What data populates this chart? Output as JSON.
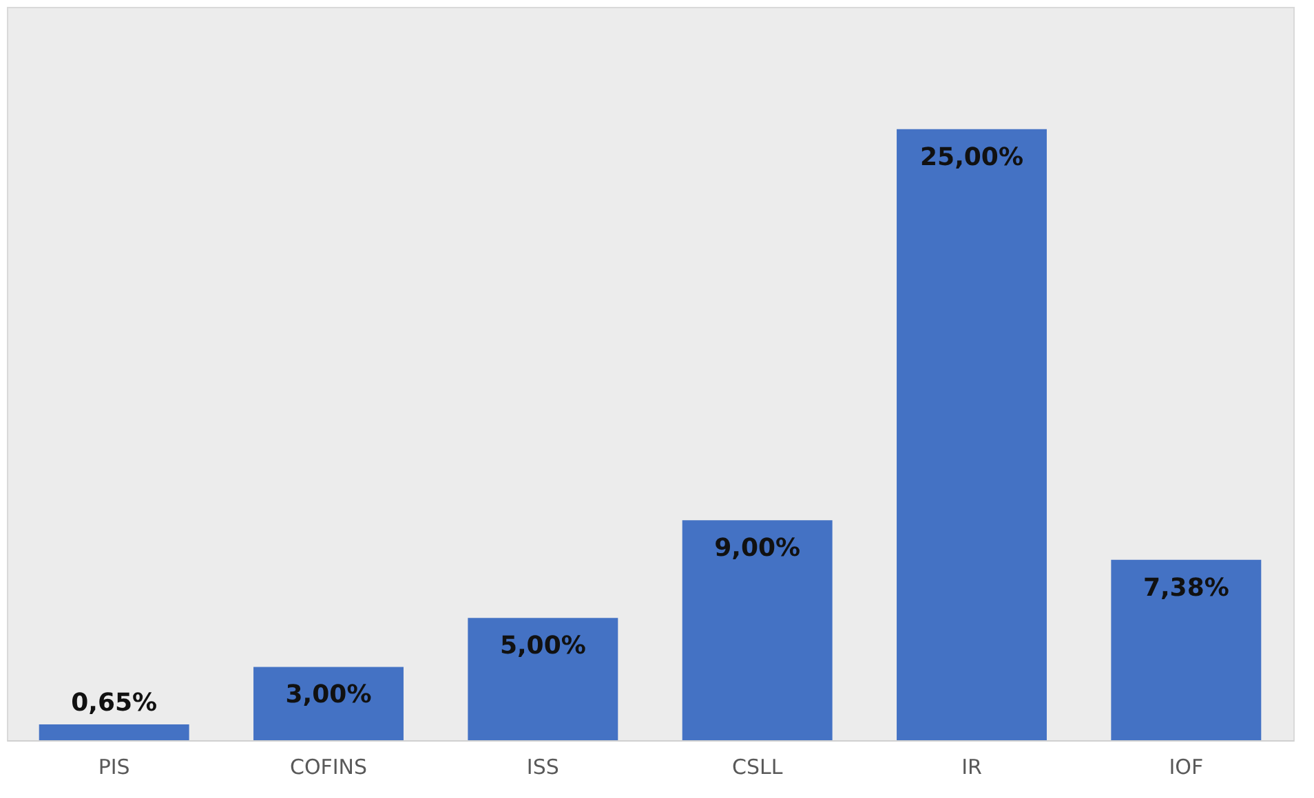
{
  "chart_data": {
    "type": "bar",
    "categories": [
      "PIS",
      "COFINS",
      "ISS",
      "CSLL",
      "IR",
      "IOF"
    ],
    "values": [
      0.65,
      3.0,
      5.0,
      9.0,
      25.0,
      7.38
    ],
    "value_labels": [
      "0,65%",
      "3,00%",
      "5,00%",
      "9,00%",
      "25,00%",
      "7,38%"
    ],
    "color": "#4472c4"
  }
}
